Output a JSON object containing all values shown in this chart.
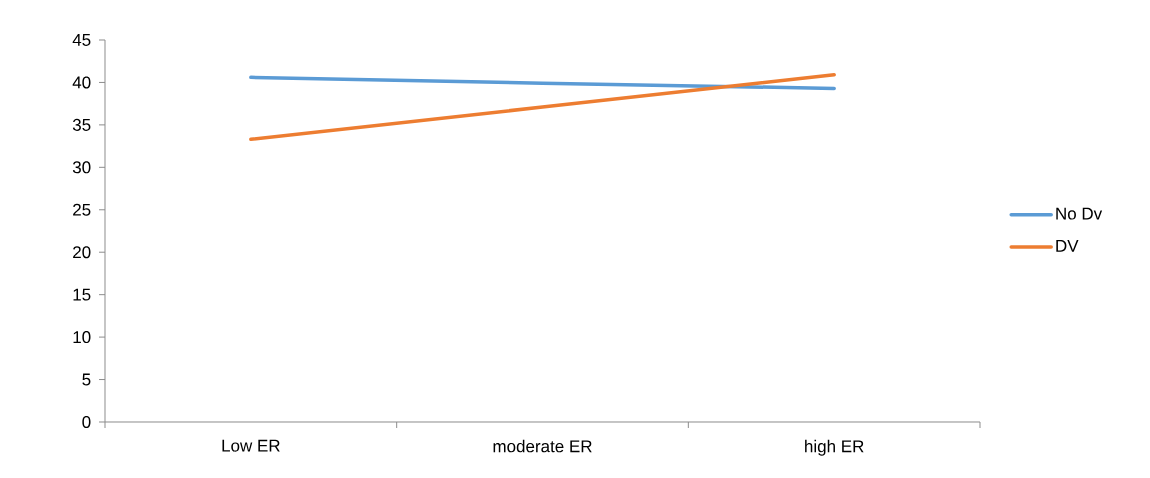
{
  "chart_data": {
    "type": "line",
    "categories": [
      "Low ER",
      "moderate ER",
      "high ER"
    ],
    "series": [
      {
        "name": "No Dv",
        "color": "#5b9bd5",
        "values": [
          40.6,
          39.9,
          39.3
        ]
      },
      {
        "name": "DV",
        "color": "#ed7d31",
        "values": [
          33.3,
          37.1,
          40.9
        ]
      }
    ],
    "ylim": [
      0,
      45
    ],
    "yticks": [
      0,
      5,
      10,
      15,
      20,
      25,
      30,
      35,
      40,
      45
    ],
    "legend": "right"
  }
}
